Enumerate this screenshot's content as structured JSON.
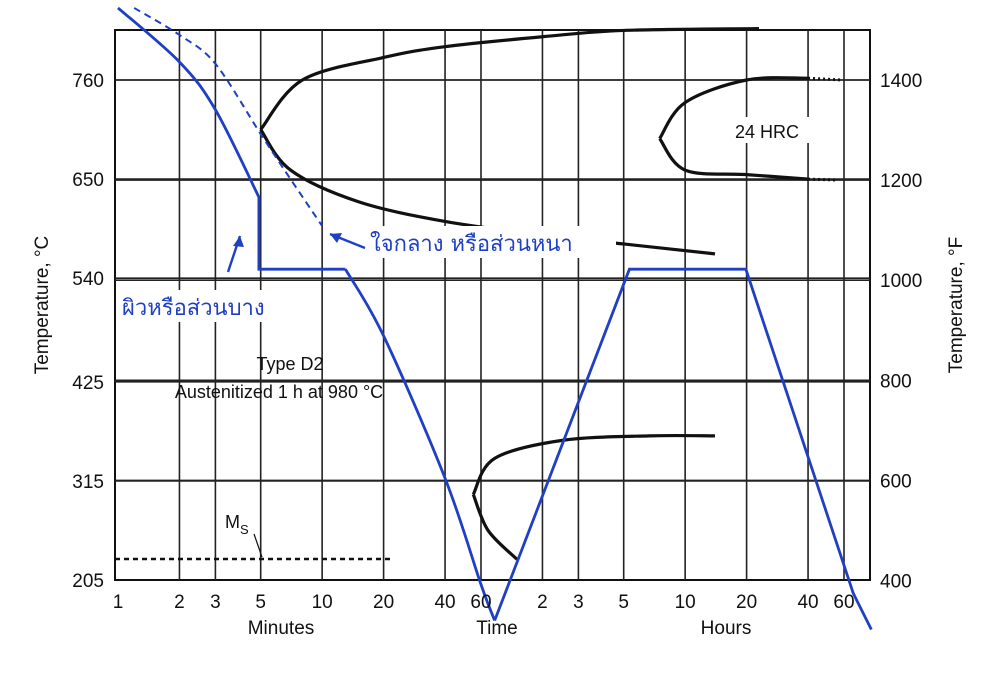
{
  "chart_data": {
    "type": "line",
    "title": "",
    "left_axis": {
      "label": "Temperature, °C",
      "ticks": [
        "760",
        "650",
        "540",
        "425",
        "315",
        "205"
      ],
      "values": [
        760,
        650,
        540,
        425,
        315,
        205
      ]
    },
    "right_axis": {
      "label": "Temperature, °F",
      "ticks": [
        "1400",
        "1200",
        "1000",
        "800",
        "600",
        "400"
      ],
      "values": [
        1400,
        1200,
        1000,
        800,
        600,
        400
      ]
    },
    "x_axis": {
      "label": "Time",
      "scale": "log",
      "minutes_label": "Minutes",
      "hours_label": "Hours",
      "minute_ticks": [
        "1",
        "2",
        "3",
        "5",
        "10",
        "20",
        "40",
        "60"
      ],
      "minute_values": [
        1,
        2,
        3,
        5,
        10,
        20,
        40,
        60
      ],
      "hour_ticks": [
        "2",
        "3",
        "5",
        "10",
        "20",
        "40",
        "60"
      ],
      "hour_values": [
        2,
        3,
        5,
        10,
        20,
        40,
        60
      ]
    },
    "annotations": {
      "material": "Type D2",
      "treatment": "Austenitized 1 h at 980 °C",
      "hardness": "24 HRC",
      "ms_main": "M",
      "ms_sub": "S"
    },
    "series": [
      {
        "name": "ผิวหรือส่วนบาง",
        "style": "solid",
        "color": "#1f3fc4",
        "points_minutes_degC": [
          [
            1,
            840
          ],
          [
            2,
            780
          ],
          [
            3,
            727
          ],
          [
            4.9,
            630
          ],
          [
            4.9,
            550
          ],
          [
            13,
            550
          ],
          [
            20,
            476
          ],
          [
            40,
            318
          ],
          [
            60,
            200
          ],
          [
            70,
            160
          ],
          [
            320,
            550
          ],
          [
            1190,
            550
          ],
          [
            4000,
            190
          ],
          [
            4900,
            150
          ]
        ]
      },
      {
        "name": "ใจกลาง หรือส่วนหนา",
        "style": "dashed",
        "color": "#1f3fc4",
        "points_minutes_degC": [
          [
            1.2,
            840
          ],
          [
            2,
            810
          ],
          [
            3,
            778
          ],
          [
            5,
            700
          ],
          [
            7,
            650
          ],
          [
            10,
            598
          ]
        ]
      }
    ],
    "ttt_curves": [
      {
        "region": "upper",
        "points_minutes_degC": [
          [
            5,
            705
          ],
          [
            8,
            760
          ],
          [
            20,
            785
          ],
          [
            40,
            797
          ],
          [
            120,
            808
          ],
          [
            300,
            815
          ],
          [
            1380,
            817
          ]
        ]
      },
      {
        "region": "upper",
        "points_minutes_degC": [
          [
            5,
            705
          ],
          [
            7,
            660
          ],
          [
            15,
            625
          ],
          [
            40,
            603
          ],
          [
            120,
            588
          ],
          [
            300,
            578
          ],
          [
            840,
            567
          ]
        ]
      },
      {
        "region": "upper-right",
        "points_minutes_degC": [
          [
            450,
            695
          ],
          [
            600,
            735
          ],
          [
            1200,
            760
          ],
          [
            2400,
            762
          ]
        ]
      },
      {
        "region": "upper-right",
        "points_minutes_degC": [
          [
            450,
            695
          ],
          [
            600,
            660
          ],
          [
            1200,
            655
          ],
          [
            2400,
            650
          ]
        ]
      },
      {
        "region": "lower",
        "points_minutes_degC": [
          [
            55,
            300
          ],
          [
            70,
            340
          ],
          [
            150,
            360
          ],
          [
            400,
            365
          ],
          [
            840,
            365
          ]
        ]
      },
      {
        "region": "lower",
        "points_minutes_degC": [
          [
            55,
            300
          ],
          [
            65,
            260
          ],
          [
            90,
            228
          ]
        ]
      }
    ],
    "ms_temperature_degC": 225
  }
}
